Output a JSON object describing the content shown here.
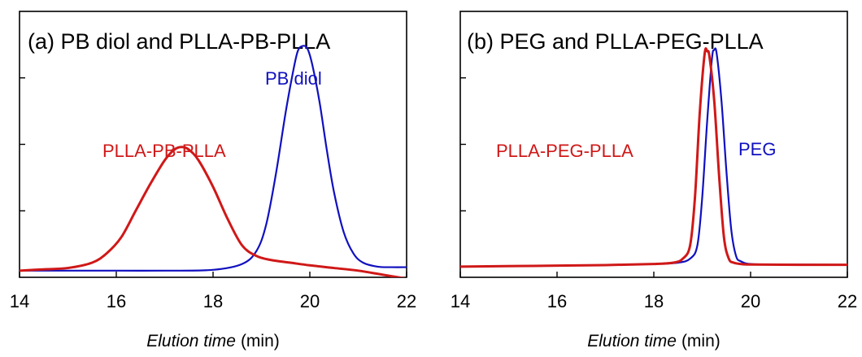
{
  "chart_data": [
    {
      "type": "line",
      "title": "(a) PB diol and PLLA-PB-PLLA",
      "xlabel_italic": "Elution time",
      "xlabel_unit": "(min)",
      "xlim": [
        14,
        22
      ],
      "ylim": [
        0,
        1
      ],
      "x_ticks": [
        14,
        16,
        18,
        20,
        22
      ],
      "y_ticks": [
        0.25,
        0.5,
        0.75
      ],
      "grid": false,
      "series": [
        {
          "name": "PB diol",
          "color": "#1010c0",
          "x": [
            14.0,
            15.0,
            16.0,
            17.0,
            18.0,
            18.6,
            18.9,
            19.1,
            19.3,
            19.5,
            19.65,
            19.75,
            19.85,
            19.95,
            20.05,
            20.2,
            20.35,
            20.5,
            20.7,
            20.9,
            21.1,
            21.4,
            21.7,
            22.0
          ],
          "y": [
            0.025,
            0.025,
            0.025,
            0.025,
            0.028,
            0.05,
            0.1,
            0.2,
            0.39,
            0.62,
            0.77,
            0.85,
            0.87,
            0.86,
            0.8,
            0.66,
            0.48,
            0.32,
            0.17,
            0.09,
            0.055,
            0.04,
            0.038,
            0.038
          ]
        },
        {
          "name": "PLLA-PB-PLLA",
          "color": "#d01818",
          "x": [
            14.0,
            14.5,
            15.0,
            15.5,
            15.8,
            16.1,
            16.4,
            16.7,
            17.0,
            17.2,
            17.35,
            17.5,
            17.7,
            18.0,
            18.3,
            18.6,
            18.9,
            19.2,
            19.6,
            20.0,
            20.5,
            21.0,
            21.5,
            22.0
          ],
          "y": [
            0.025,
            0.03,
            0.035,
            0.055,
            0.09,
            0.15,
            0.25,
            0.35,
            0.44,
            0.48,
            0.49,
            0.48,
            0.44,
            0.34,
            0.22,
            0.12,
            0.08,
            0.065,
            0.055,
            0.045,
            0.035,
            0.025,
            0.01,
            -0.005
          ]
        }
      ]
    },
    {
      "type": "line",
      "title": "(b) PEG and PLLA-PEG-PLLA",
      "xlabel_italic": "Elution time",
      "xlabel_unit": "(min)",
      "xlim": [
        14,
        22
      ],
      "ylim": [
        0,
        1
      ],
      "x_ticks": [
        14,
        16,
        18,
        20,
        22
      ],
      "y_ticks": [
        0.25,
        0.5,
        0.75
      ],
      "grid": false,
      "series": [
        {
          "name": "PEG",
          "color": "#1010c0",
          "x": [
            14.0,
            15.5,
            17.0,
            18.0,
            18.5,
            18.75,
            18.9,
            19.0,
            19.1,
            19.2,
            19.25,
            19.3,
            19.4,
            19.5,
            19.6,
            19.7,
            19.8,
            20.0,
            20.5,
            21.0,
            22.0
          ],
          "y": [
            0.04,
            0.043,
            0.046,
            0.05,
            0.055,
            0.07,
            0.12,
            0.3,
            0.58,
            0.82,
            0.855,
            0.84,
            0.66,
            0.4,
            0.18,
            0.08,
            0.06,
            0.05,
            0.048,
            0.048,
            0.047
          ]
        },
        {
          "name": "PLLA-PEG-PLLA",
          "color": "#d01818",
          "x": [
            14.0,
            15.5,
            17.0,
            18.0,
            18.4,
            18.6,
            18.75,
            18.85,
            18.95,
            19.05,
            19.1,
            19.15,
            19.25,
            19.35,
            19.45,
            19.55,
            19.65,
            19.8,
            20.0,
            21.0,
            22.0
          ],
          "y": [
            0.04,
            0.043,
            0.046,
            0.05,
            0.055,
            0.07,
            0.12,
            0.3,
            0.62,
            0.84,
            0.85,
            0.83,
            0.66,
            0.38,
            0.15,
            0.07,
            0.055,
            0.05,
            0.048,
            0.047,
            0.047
          ]
        }
      ]
    }
  ],
  "panels": [
    {
      "series_labels": [
        {
          "text": "PB diol",
          "color": "#1010c0"
        },
        {
          "text": "PLLA-PB-PLLA",
          "color": "#d01818"
        }
      ]
    },
    {
      "series_labels": [
        {
          "text": "PEG",
          "color": "#1010c0"
        },
        {
          "text": "PLLA-PEG-PLLA",
          "color": "#d01818"
        }
      ]
    }
  ]
}
